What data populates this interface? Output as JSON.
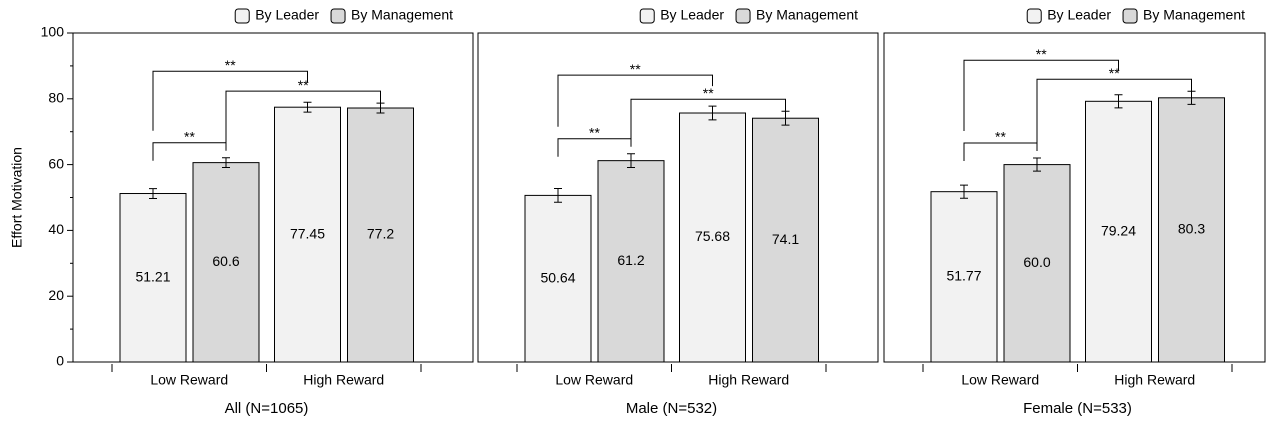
{
  "chart_data": [
    {
      "type": "bar",
      "ylabel": "Effort Motivation",
      "xlabel": "All (N=1065)",
      "categories": [
        "Low Reward",
        "High Reward"
      ],
      "series": [
        {
          "name": "By Leader",
          "color": "#f2f2f2",
          "values": [
            51.21,
            77.45
          ],
          "errors": [
            1.5,
            1.5
          ]
        },
        {
          "name": "By Management",
          "color": "#d9d9d9",
          "values": [
            60.6,
            77.2
          ],
          "errors": [
            1.5,
            1.5
          ]
        }
      ],
      "annotations": [
        "**",
        "**",
        "**"
      ],
      "ylim": [
        0,
        100
      ],
      "yticks": [
        0,
        20,
        40,
        60,
        80,
        100
      ]
    },
    {
      "type": "bar",
      "xlabel": "Male (N=532)",
      "categories": [
        "Low Reward",
        "High Reward"
      ],
      "series": [
        {
          "name": "By Leader",
          "color": "#f2f2f2",
          "values": [
            50.64,
            75.68
          ],
          "errors": [
            2.1,
            2.1
          ]
        },
        {
          "name": "By Management",
          "color": "#d9d9d9",
          "values": [
            61.2,
            74.1
          ],
          "errors": [
            2.1,
            2.1
          ]
        }
      ],
      "annotations": [
        "**",
        "**",
        "**"
      ],
      "ylim": [
        0,
        100
      ]
    },
    {
      "type": "bar",
      "xlabel": "Female (N=533)",
      "categories": [
        "Low Reward",
        "High Reward"
      ],
      "series": [
        {
          "name": "By Leader",
          "color": "#f2f2f2",
          "values": [
            51.77,
            79.24
          ],
          "errors": [
            2.0,
            2.0
          ]
        },
        {
          "name": "By Management",
          "color": "#d9d9d9",
          "values": [
            60.0,
            80.3
          ],
          "errors": [
            2.0,
            2.0
          ],
          "value_labels": [
            "60.0",
            "80.3"
          ]
        }
      ],
      "annotations": [
        "**",
        "**",
        "**"
      ],
      "ylim": [
        0,
        100
      ]
    }
  ]
}
